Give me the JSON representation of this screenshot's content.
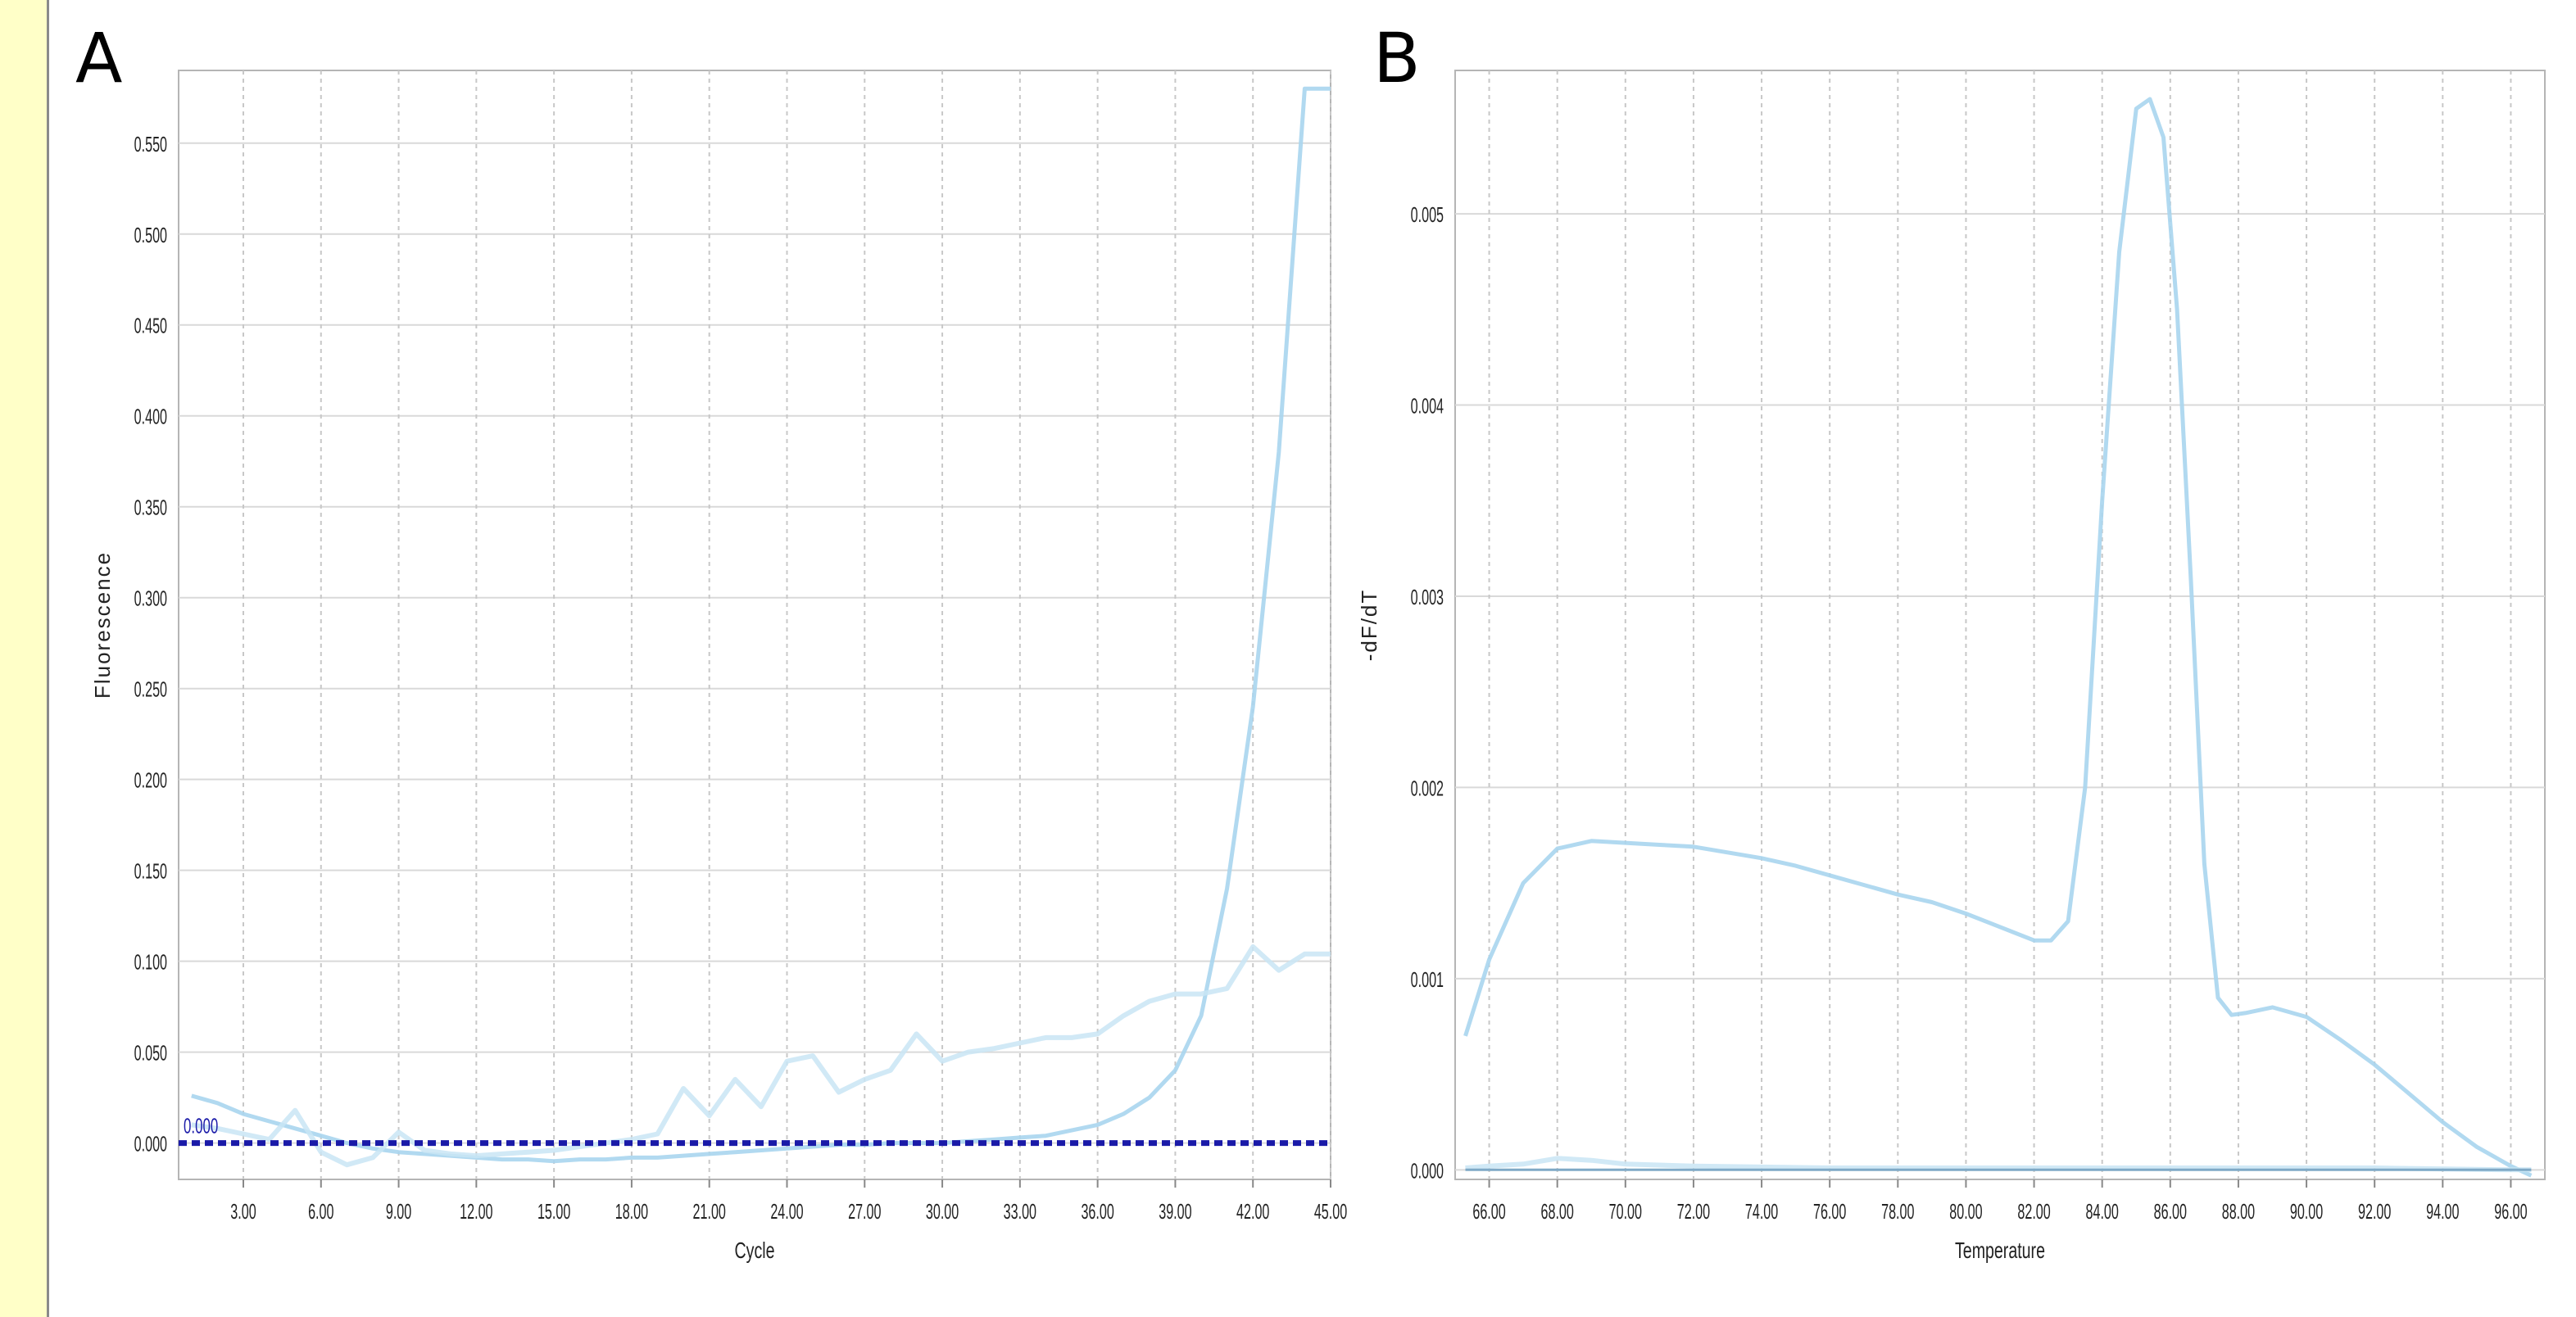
{
  "colors": {
    "sidebar_bg": "#ffffc8",
    "curve": "#a9d5ee",
    "curve_light": "#c9e5f5",
    "threshold": "#1a1aa8",
    "grid_h": "#d9d9d9",
    "grid_v": "#c8c8c8",
    "frame": "#b5b5b5"
  },
  "panels": {
    "A": {
      "letter": "A"
    },
    "B": {
      "letter": "B"
    }
  },
  "chart_data": [
    {
      "type": "line",
      "panel": "A",
      "xlabel": "Cycle",
      "ylabel": "Fluorescence",
      "xlim": [
        0.5,
        45
      ],
      "ylim": [
        -0.02,
        0.59
      ],
      "xticks": [
        "3.00",
        "6.00",
        "9.00",
        "12.00",
        "15.00",
        "18.00",
        "21.00",
        "24.00",
        "27.00",
        "30.00",
        "33.00",
        "36.00",
        "39.00",
        "42.00",
        "45.00"
      ],
      "yticks": [
        "0.000",
        "0.050",
        "0.100",
        "0.150",
        "0.200",
        "0.250",
        "0.300",
        "0.350",
        "0.400",
        "0.450",
        "0.500",
        "0.550"
      ],
      "grid": true,
      "threshold": {
        "label": "0.000",
        "value": 0.0
      },
      "series": [
        {
          "style": "bold",
          "x": [
            1,
            2,
            3,
            4,
            5,
            6,
            7,
            8,
            9,
            10,
            11,
            12,
            13,
            14,
            15,
            16,
            17,
            18,
            19,
            20,
            21,
            22,
            23,
            24,
            25,
            26,
            27,
            28,
            29,
            30,
            31,
            32,
            33,
            34,
            35,
            36,
            37,
            38,
            39,
            40,
            41,
            42,
            43,
            44,
            45
          ],
          "y": [
            0.026,
            0.022,
            0.016,
            0.012,
            0.008,
            0.004,
            0.0,
            -0.003,
            -0.005,
            -0.006,
            -0.007,
            -0.008,
            -0.009,
            -0.009,
            -0.01,
            -0.009,
            -0.009,
            -0.008,
            -0.008,
            -0.007,
            -0.006,
            -0.005,
            -0.004,
            -0.003,
            -0.002,
            -0.001,
            -0.001,
            0.0,
            0.0,
            0.0,
            0.001,
            0.002,
            0.003,
            0.004,
            0.007,
            0.01,
            0.016,
            0.025,
            0.04,
            0.07,
            0.14,
            0.24,
            0.38,
            0.58,
            0.58
          ]
        },
        {
          "style": "thin",
          "x": [
            1,
            2,
            3,
            4,
            5,
            6,
            7,
            8,
            9,
            10,
            11,
            12,
            13,
            14,
            15,
            16,
            17,
            18,
            19,
            20,
            21,
            22,
            23,
            24,
            25,
            26,
            27,
            28,
            29,
            30,
            31,
            32,
            33,
            34,
            35,
            36,
            37,
            38,
            39,
            40,
            41,
            42,
            43,
            44,
            45
          ],
          "y": [
            0.01,
            0.008,
            0.005,
            0.002,
            0.018,
            -0.005,
            -0.012,
            -0.008,
            0.006,
            -0.004,
            -0.006,
            -0.007,
            -0.006,
            -0.005,
            -0.004,
            -0.002,
            0.0,
            0.002,
            0.005,
            0.03,
            0.015,
            0.035,
            0.02,
            0.045,
            0.048,
            0.028,
            0.035,
            0.04,
            0.06,
            0.045,
            0.05,
            0.052,
            0.055,
            0.058,
            0.058,
            0.06,
            0.07,
            0.078,
            0.082,
            0.082,
            0.085,
            0.108,
            0.095,
            0.104,
            0.104
          ]
        }
      ]
    },
    {
      "type": "line",
      "panel": "B",
      "xlabel": "Temperature",
      "ylabel": "-dF/dT",
      "xlim": [
        65,
        97
      ],
      "ylim": [
        -5e-05,
        0.00575
      ],
      "xticks": [
        "66.00",
        "68.00",
        "70.00",
        "72.00",
        "74.00",
        "76.00",
        "78.00",
        "80.00",
        "82.00",
        "84.00",
        "86.00",
        "88.00",
        "90.00",
        "92.00",
        "94.00",
        "96.00"
      ],
      "yticks": [
        "0.000",
        "0.001",
        "0.002",
        "0.003",
        "0.004",
        "0.005"
      ],
      "grid": true,
      "series": [
        {
          "style": "bold",
          "x": [
            65.3,
            66.0,
            67.0,
            68.0,
            69.0,
            70.0,
            71.0,
            72.0,
            73.0,
            74.0,
            75.0,
            76.0,
            77.0,
            78.0,
            79.0,
            80.0,
            81.0,
            82.0,
            82.5,
            83.0,
            83.5,
            84.0,
            84.5,
            85.0,
            85.4,
            85.8,
            86.2,
            86.6,
            87.0,
            87.4,
            87.8,
            88.2,
            89.0,
            90.0,
            91.0,
            92.0,
            93.0,
            94.0,
            95.0,
            96.0,
            96.6
          ],
          "y": [
            0.0007,
            0.0011,
            0.0015,
            0.00168,
            0.00172,
            0.00171,
            0.0017,
            0.00169,
            0.00166,
            0.00163,
            0.00159,
            0.00154,
            0.00149,
            0.00144,
            0.0014,
            0.00134,
            0.00127,
            0.0012,
            0.0012,
            0.0013,
            0.002,
            0.0035,
            0.0048,
            0.00555,
            0.0056,
            0.0054,
            0.0045,
            0.0031,
            0.0016,
            0.0009,
            0.00081,
            0.00082,
            0.00085,
            0.0008,
            0.00068,
            0.00055,
            0.0004,
            0.00025,
            0.00012,
            2e-05,
            -3e-05
          ]
        },
        {
          "style": "thin",
          "x": [
            65.3,
            66.0,
            67.0,
            68.0,
            69.0,
            70.0,
            72.0,
            76.0,
            80.0,
            84.0,
            88.0,
            92.0,
            96.0,
            96.6
          ],
          "y": [
            1e-05,
            2e-05,
            3e-05,
            6e-05,
            5e-05,
            3e-05,
            2e-05,
            1e-05,
            1e-05,
            1e-05,
            1e-05,
            1e-05,
            0.0,
            0.0
          ]
        },
        {
          "style": "base",
          "x": [
            65.3,
            96.6
          ],
          "y": [
            0.0,
            0.0
          ]
        }
      ]
    }
  ]
}
